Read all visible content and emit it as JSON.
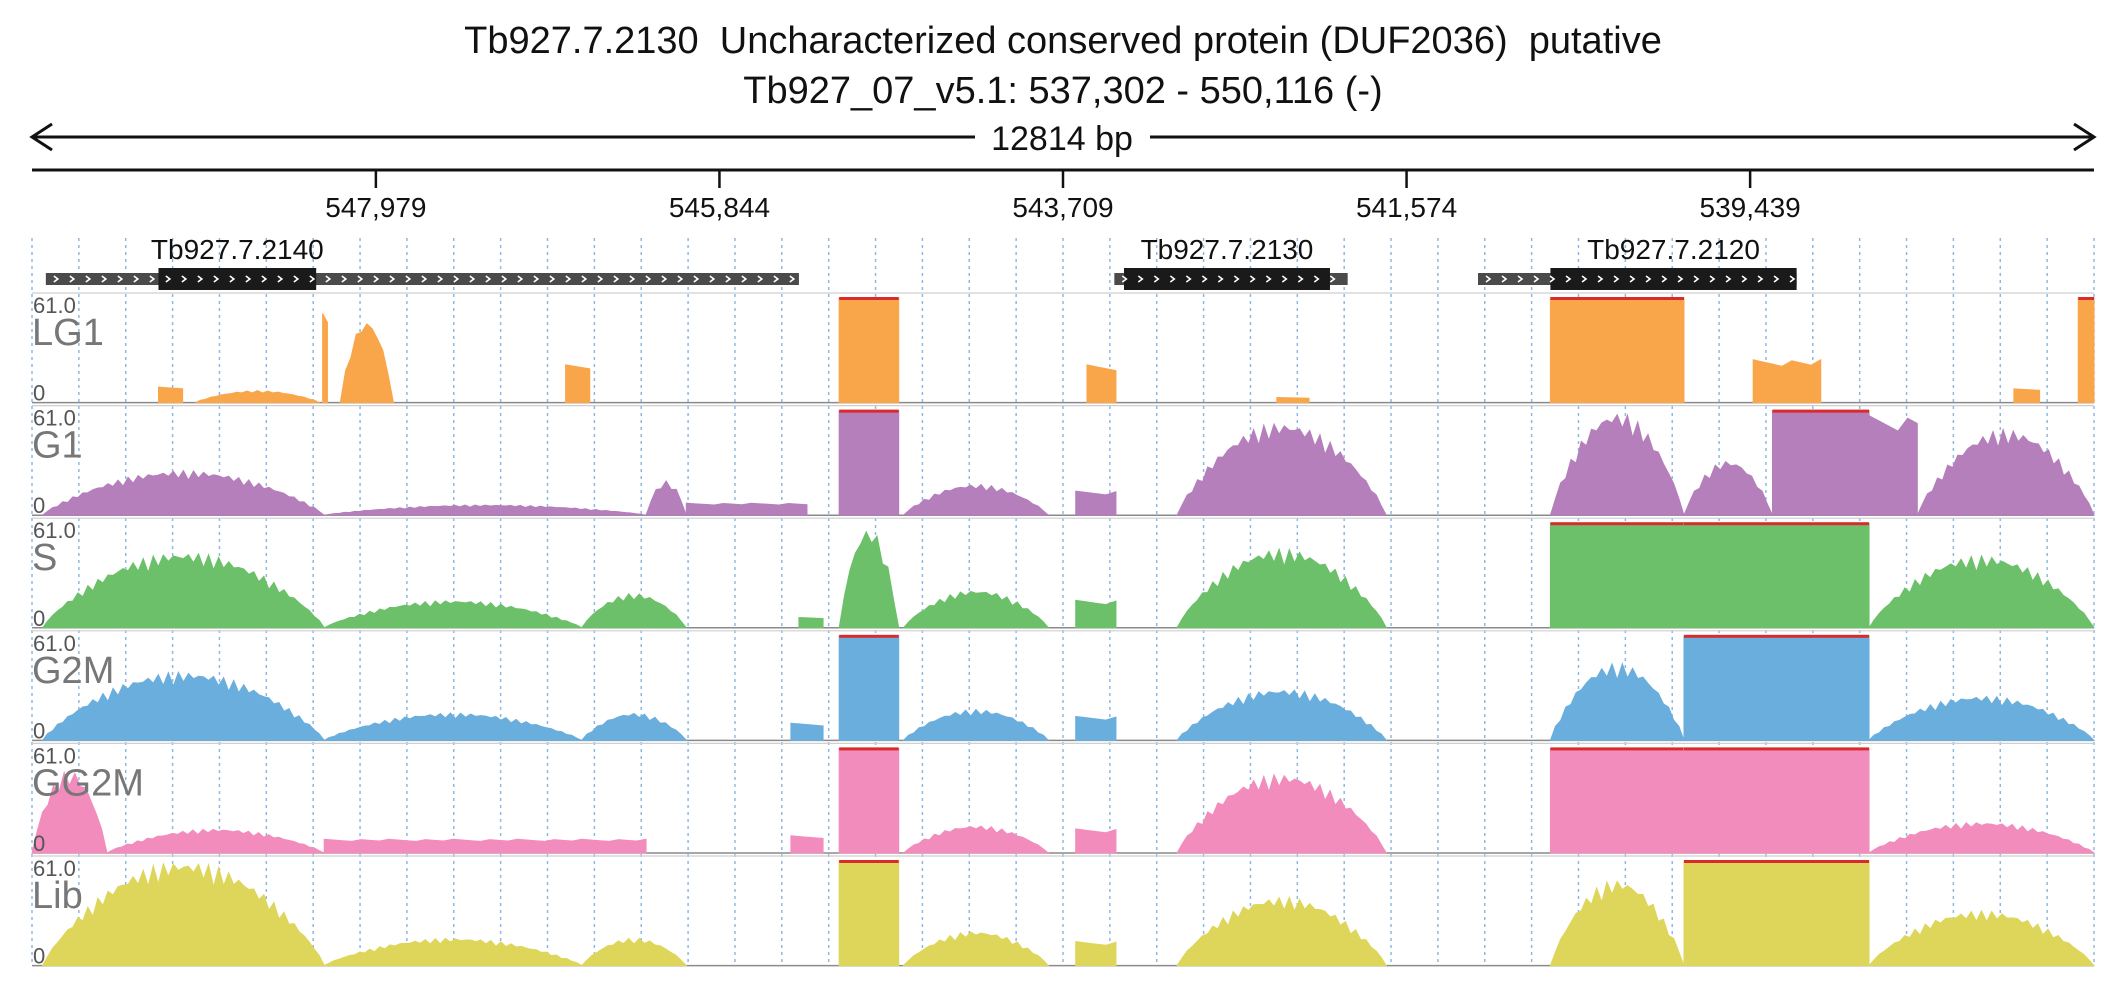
{
  "title": "Tb927.7.2130  Uncharacterized conserved protein (DUF2036)  putative",
  "subtitle": "Tb927_07_v5.1: 537,302 - 550,116 (-)",
  "span_label": "12814 bp",
  "colors": {
    "LG1": "#F9A64A",
    "G1": "#B47FBB",
    "S": "#6CC06A",
    "G2M": "#6AAEDD",
    "GG2M": "#F18CBC",
    "Lib": "#DDD65A",
    "clip": "#D92B2B",
    "gene_cds": "#1A1A1A",
    "gene_utr": "#4A4A4A",
    "grid": "#8FB8E0"
  },
  "chart_data": {
    "type": "area",
    "coordinate_range": [
      537302,
      550116
    ],
    "strand": "-",
    "axis": {
      "ticks": [
        {
          "pos": 547979,
          "label": "547,979"
        },
        {
          "pos": 545844,
          "label": "545,844"
        },
        {
          "pos": 543709,
          "label": "543,709"
        },
        {
          "pos": 541574,
          "label": "541,574"
        },
        {
          "pos": 539439,
          "label": "539,439"
        }
      ]
    },
    "genes": [
      {
        "name": "Tb927.7.2140",
        "utr": [
          545350,
          550030
        ],
        "cds": [
          548350,
          549330
        ]
      },
      {
        "name": "Tb927.7.2130",
        "utr": [
          541940,
          543390
        ],
        "cds": [
          542050,
          543330
        ]
      },
      {
        "name": "Tb927.7.2120",
        "utr": [
          539150,
          541130
        ],
        "cds": [
          539150,
          540680
        ]
      }
    ],
    "y_max_label": "61.0",
    "y_min_label": "0",
    "ylim": [
      0,
      61
    ],
    "tracks": [
      {
        "name": "LG1",
        "blocks": [
          {
            "start": 549330,
            "end": 549180,
            "peak": 9,
            "shape": "flat"
          },
          {
            "start": 549100,
            "end": 548330,
            "peak": 7,
            "shape": "hump"
          },
          {
            "start": 548310,
            "end": 548280,
            "peak": 52,
            "shape": "flat"
          },
          {
            "start": 548200,
            "end": 547870,
            "peak": 48,
            "shape": "hump"
          },
          {
            "start": 546800,
            "end": 546650,
            "peak": 22,
            "shape": "flat"
          },
          {
            "start": 545100,
            "end": 544730,
            "peak": 61,
            "shape": "clip"
          },
          {
            "start": 543560,
            "end": 543380,
            "peak": 22,
            "shape": "flat"
          },
          {
            "start": 542380,
            "end": 542180,
            "peak": 3,
            "shape": "flat"
          },
          {
            "start": 540680,
            "end": 539850,
            "peak": 61,
            "shape": "clip"
          },
          {
            "start": 539420,
            "end": 539000,
            "peak": 25,
            "shape": "flat"
          },
          {
            "start": 537800,
            "end": 537640,
            "peak": 8,
            "shape": "flat"
          },
          {
            "start": 537400,
            "end": 537302,
            "peak": 61,
            "shape": "clip"
          }
        ]
      },
      {
        "name": "G1",
        "blocks": [
          {
            "start": 550050,
            "end": 548300,
            "peak": 26,
            "shape": "hump"
          },
          {
            "start": 548300,
            "end": 546300,
            "peak": 6,
            "shape": "hump"
          },
          {
            "start": 546300,
            "end": 546050,
            "peak": 20,
            "shape": "hump"
          },
          {
            "start": 546050,
            "end": 545300,
            "peak": 7,
            "shape": "flat"
          },
          {
            "start": 545100,
            "end": 544730,
            "peak": 61,
            "shape": "clip"
          },
          {
            "start": 544700,
            "end": 543800,
            "peak": 18,
            "shape": "hump"
          },
          {
            "start": 543630,
            "end": 543380,
            "peak": 14,
            "shape": "flat"
          },
          {
            "start": 543000,
            "end": 541700,
            "peak": 54,
            "shape": "hump"
          },
          {
            "start": 540680,
            "end": 539850,
            "peak": 60,
            "shape": "hump"
          },
          {
            "start": 539850,
            "end": 539300,
            "peak": 32,
            "shape": "hump"
          },
          {
            "start": 539300,
            "end": 538700,
            "peak": 61,
            "shape": "clip"
          },
          {
            "start": 538700,
            "end": 538400,
            "peak": 58,
            "shape": "flat"
          },
          {
            "start": 538400,
            "end": 537302,
            "peak": 50,
            "shape": "hump"
          }
        ]
      },
      {
        "name": "S",
        "blocks": [
          {
            "start": 550050,
            "end": 548300,
            "peak": 44,
            "shape": "hump"
          },
          {
            "start": 548300,
            "end": 546700,
            "peak": 16,
            "shape": "hump"
          },
          {
            "start": 546700,
            "end": 546050,
            "peak": 20,
            "shape": "hump"
          },
          {
            "start": 545350,
            "end": 545200,
            "peak": 6,
            "shape": "flat"
          },
          {
            "start": 545100,
            "end": 544730,
            "peak": 58,
            "shape": "hump"
          },
          {
            "start": 544700,
            "end": 543800,
            "peak": 22,
            "shape": "hump"
          },
          {
            "start": 543630,
            "end": 543380,
            "peak": 16,
            "shape": "flat"
          },
          {
            "start": 543000,
            "end": 541700,
            "peak": 46,
            "shape": "hump"
          },
          {
            "start": 540680,
            "end": 539850,
            "peak": 61,
            "shape": "clip"
          },
          {
            "start": 539850,
            "end": 538700,
            "peak": 61,
            "shape": "clip"
          },
          {
            "start": 538700,
            "end": 537302,
            "peak": 42,
            "shape": "hump"
          }
        ]
      },
      {
        "name": "G2M",
        "blocks": [
          {
            "start": 550050,
            "end": 548300,
            "peak": 40,
            "shape": "hump"
          },
          {
            "start": 548300,
            "end": 546700,
            "peak": 16,
            "shape": "hump"
          },
          {
            "start": 546700,
            "end": 546050,
            "peak": 16,
            "shape": "hump"
          },
          {
            "start": 545400,
            "end": 545200,
            "peak": 10,
            "shape": "flat"
          },
          {
            "start": 545100,
            "end": 544730,
            "peak": 61,
            "shape": "clip"
          },
          {
            "start": 544700,
            "end": 543800,
            "peak": 18,
            "shape": "hump"
          },
          {
            "start": 543630,
            "end": 543380,
            "peak": 14,
            "shape": "flat"
          },
          {
            "start": 543000,
            "end": 541700,
            "peak": 30,
            "shape": "hump"
          },
          {
            "start": 540680,
            "end": 539850,
            "peak": 45,
            "shape": "hump"
          },
          {
            "start": 539850,
            "end": 538700,
            "peak": 61,
            "shape": "clip"
          },
          {
            "start": 538700,
            "end": 537302,
            "peak": 26,
            "shape": "hump"
          }
        ]
      },
      {
        "name": "GG2M",
        "blocks": [
          {
            "start": 550116,
            "end": 549650,
            "peak": 48,
            "shape": "hump"
          },
          {
            "start": 549650,
            "end": 548300,
            "peak": 14,
            "shape": "hump"
          },
          {
            "start": 548300,
            "end": 546300,
            "peak": 8,
            "shape": "flat"
          },
          {
            "start": 545400,
            "end": 545200,
            "peak": 10,
            "shape": "flat"
          },
          {
            "start": 545100,
            "end": 544730,
            "peak": 61,
            "shape": "clip"
          },
          {
            "start": 544700,
            "end": 543800,
            "peak": 16,
            "shape": "hump"
          },
          {
            "start": 543630,
            "end": 543380,
            "peak": 14,
            "shape": "flat"
          },
          {
            "start": 543000,
            "end": 541700,
            "peak": 46,
            "shape": "hump"
          },
          {
            "start": 540680,
            "end": 539850,
            "peak": 61,
            "shape": "clip"
          },
          {
            "start": 539850,
            "end": 538700,
            "peak": 61,
            "shape": "clip"
          },
          {
            "start": 538700,
            "end": 537302,
            "peak": 18,
            "shape": "hump"
          }
        ]
      },
      {
        "name": "Lib",
        "blocks": [
          {
            "start": 550050,
            "end": 548300,
            "peak": 61,
            "shape": "hump"
          },
          {
            "start": 548300,
            "end": 546700,
            "peak": 16,
            "shape": "hump"
          },
          {
            "start": 546700,
            "end": 546050,
            "peak": 16,
            "shape": "hump"
          },
          {
            "start": 545100,
            "end": 544730,
            "peak": 61,
            "shape": "clip"
          },
          {
            "start": 544700,
            "end": 543800,
            "peak": 20,
            "shape": "hump"
          },
          {
            "start": 543630,
            "end": 543380,
            "peak": 14,
            "shape": "flat"
          },
          {
            "start": 543000,
            "end": 541700,
            "peak": 40,
            "shape": "hump"
          },
          {
            "start": 540680,
            "end": 539850,
            "peak": 50,
            "shape": "hump"
          },
          {
            "start": 539850,
            "end": 538700,
            "peak": 61,
            "shape": "clip"
          },
          {
            "start": 538700,
            "end": 537302,
            "peak": 32,
            "shape": "hump"
          }
        ]
      }
    ]
  }
}
